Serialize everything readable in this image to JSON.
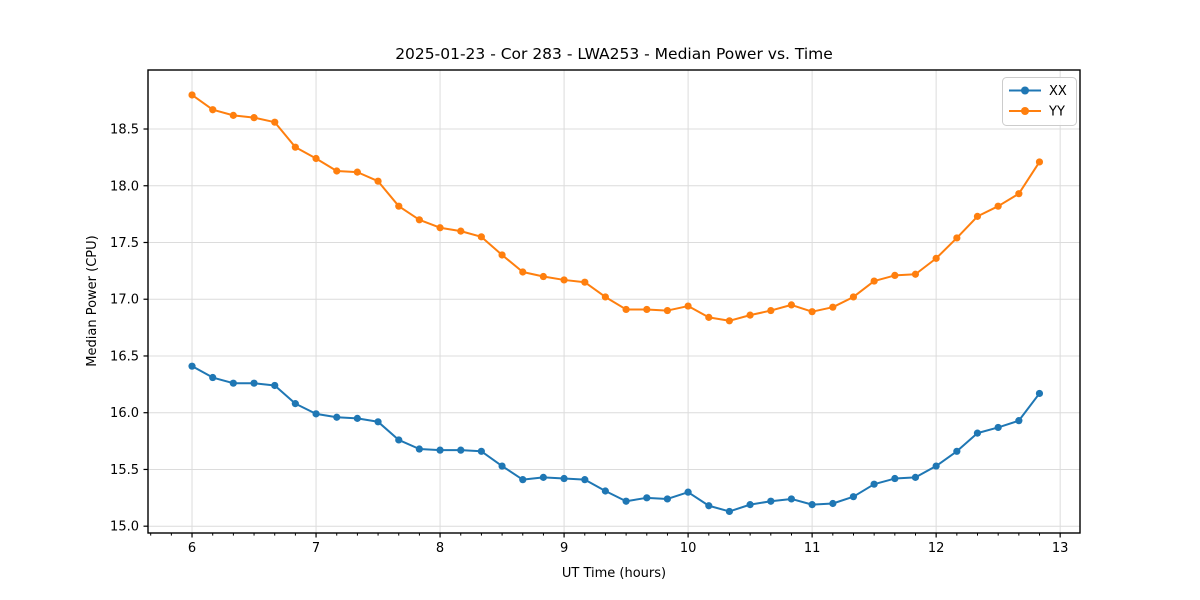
{
  "chart_data": {
    "type": "line",
    "title": "2025-01-23 - Cor 283 - LWA253 - Median Power vs. Time",
    "xlabel": "UT Time (hours)",
    "ylabel": "Median Power (CPU)",
    "x": [
      6.0,
      6.167,
      6.333,
      6.5,
      6.667,
      6.833,
      7.0,
      7.167,
      7.333,
      7.5,
      7.667,
      7.833,
      8.0,
      8.167,
      8.333,
      8.5,
      8.667,
      8.833,
      9.0,
      9.167,
      9.333,
      9.5,
      9.667,
      9.833,
      10.0,
      10.167,
      10.333,
      10.5,
      10.667,
      10.833,
      11.0,
      11.167,
      11.333,
      11.5,
      11.667,
      11.833,
      12.0,
      12.167,
      12.333,
      12.5,
      12.667,
      12.833
    ],
    "series": [
      {
        "name": "XX",
        "color": "#1f77b4",
        "values": [
          16.41,
          16.31,
          16.26,
          16.26,
          16.24,
          16.08,
          15.99,
          15.96,
          15.95,
          15.92,
          15.76,
          15.68,
          15.67,
          15.67,
          15.66,
          15.53,
          15.41,
          15.43,
          15.42,
          15.41,
          15.31,
          15.22,
          15.25,
          15.24,
          15.3,
          15.18,
          15.13,
          15.19,
          15.22,
          15.24,
          15.19,
          15.2,
          15.26,
          15.37,
          15.42,
          15.43,
          15.53,
          15.66,
          15.82,
          15.87,
          15.93,
          16.17
        ]
      },
      {
        "name": "YY",
        "color": "#ff7f0e",
        "values": [
          18.8,
          18.67,
          18.62,
          18.6,
          18.56,
          18.34,
          18.24,
          18.13,
          18.12,
          18.04,
          17.82,
          17.7,
          17.63,
          17.6,
          17.55,
          17.39,
          17.24,
          17.2,
          17.17,
          17.15,
          17.02,
          16.91,
          16.91,
          16.9,
          16.94,
          16.84,
          16.81,
          16.86,
          16.9,
          16.95,
          16.89,
          16.93,
          17.02,
          17.16,
          17.21,
          17.22,
          17.36,
          17.54,
          17.73,
          17.82,
          17.93,
          18.21
        ]
      }
    ],
    "xlim": [
      5.645,
      13.16
    ],
    "ylim": [
      14.94,
      19.02
    ],
    "xticks": [
      6,
      7,
      8,
      9,
      10,
      11,
      12,
      13
    ],
    "yticks": [
      15.0,
      15.5,
      16.0,
      16.5,
      17.0,
      17.5,
      18.0,
      18.5
    ],
    "x_minor_step": 0.16667,
    "grid": "major",
    "legend_loc": "upper right",
    "colors": {
      "grid": "#dcdcdc",
      "spine": "#000000",
      "tick": "#000000",
      "background": "#ffffff"
    }
  }
}
